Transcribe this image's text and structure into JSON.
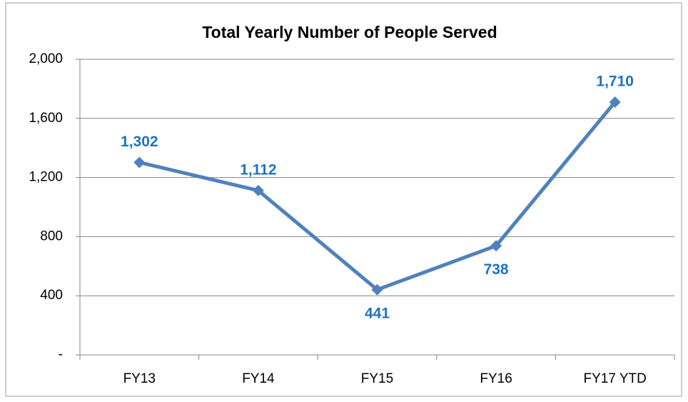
{
  "chart_data": {
    "type": "line",
    "title": "Total Yearly Number of People Served",
    "categories": [
      "FY13",
      "FY14",
      "FY15",
      "FY16",
      "FY17 YTD"
    ],
    "series": [
      {
        "name": "People Served",
        "color": "#4f81bd",
        "values": [
          1302,
          1112,
          441,
          738,
          1710
        ],
        "value_labels": [
          "1,302",
          "1,112",
          "441",
          "738",
          "1,710"
        ]
      }
    ],
    "label_color": "#1f73be",
    "ylim": [
      0,
      2000
    ],
    "yticks": [
      {
        "value": 0,
        "label": "-"
      },
      400,
      800,
      {
        "value": 1200,
        "label": "1,200"
      },
      {
        "value": 1600,
        "label": "1,600"
      },
      {
        "value": 2000,
        "label": "2,000"
      }
    ],
    "grid": true
  }
}
